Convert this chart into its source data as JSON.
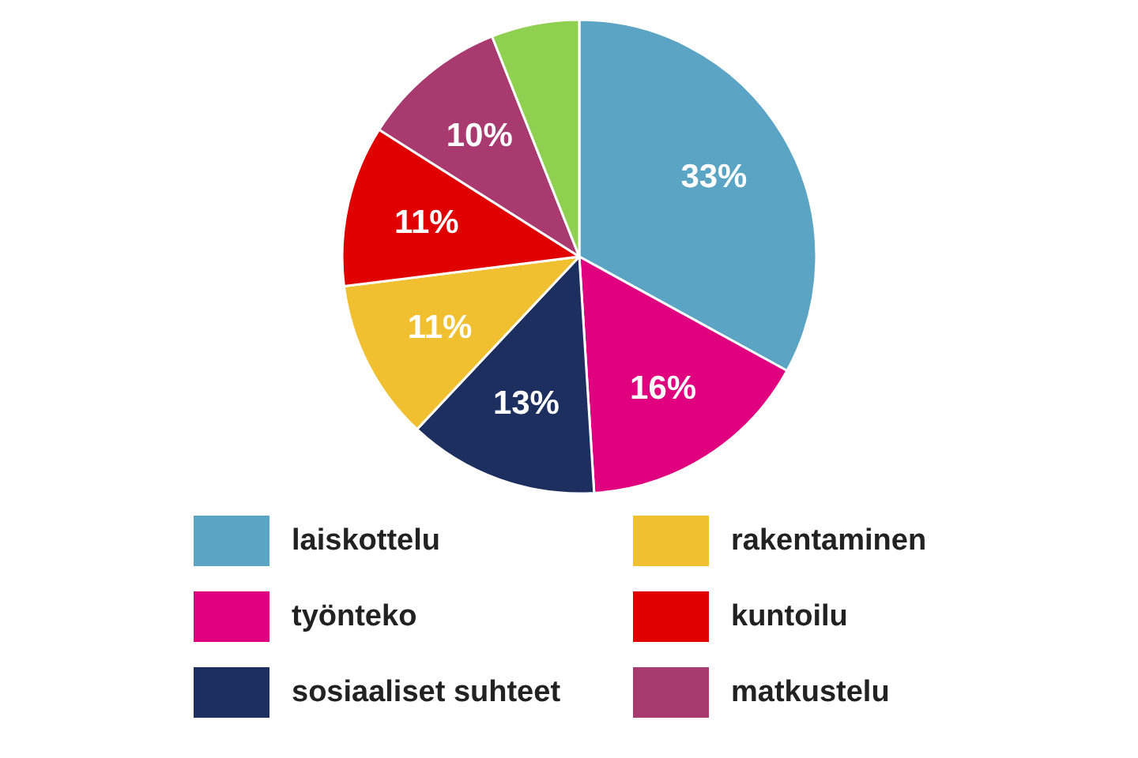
{
  "chart_data": {
    "type": "pie",
    "categories": [
      "laiskottelu",
      "työnteko",
      "sosiaaliset suhteet",
      "rakentaminen",
      "kuntoilu",
      "matkustelu",
      null
    ],
    "values": [
      33,
      16,
      13,
      11,
      11,
      10,
      6
    ],
    "colors": [
      "#5ba4c4",
      "#e0007f",
      "#1c2f5e",
      "#f0c030",
      "#e00000",
      "#a83a70",
      "#8fd050"
    ],
    "value_labels": [
      "33%",
      "16%",
      "13%",
      "11%",
      "11%",
      "10%",
      null
    ],
    "legend": "bottom"
  }
}
